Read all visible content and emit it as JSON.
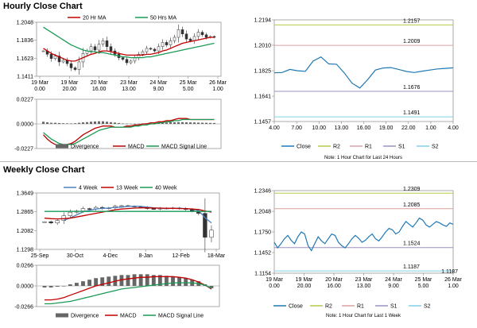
{
  "colors": {
    "up": "#ffffff",
    "down": "#333333",
    "candle_edge": "#333333",
    "ma_red": "#c00000",
    "ma_green": "#1a9a55",
    "ma_blue": "#4f81bd",
    "close_blue": "#1f78b4",
    "r2": "#b6c94a",
    "r1": "#d9a0a0",
    "s1": "#9e8fc4",
    "s2": "#7fd0e6",
    "divergence": "#666666",
    "grid": "#d9d9d9"
  },
  "sections": {
    "hourly_title": "Hourly Close Chart",
    "weekly_title": "Weekly Close Chart"
  },
  "chart_data": [
    {
      "id": "hourly_price",
      "type": "candlestick",
      "legend": [
        "20 Hr MA",
        "50 Hrs MA"
      ],
      "y_ticks": [
        "1.2048",
        "1.1836",
        "1.1623",
        "1.1411"
      ],
      "ylim": [
        1.1411,
        1.2048
      ],
      "x_ticks": [
        [
          "19 Mar",
          "0.00"
        ],
        [
          "19 Mar",
          "20.00"
        ],
        [
          "20 Mar",
          "16.00"
        ],
        [
          "23 Mar",
          "13.00"
        ],
        [
          "24 Mar",
          "9.00"
        ],
        [
          "25 Mar",
          "5.00"
        ],
        [
          "26 Mar",
          "1.00"
        ]
      ],
      "n": 44,
      "closes": [
        1.171,
        1.167,
        1.162,
        1.165,
        1.158,
        1.16,
        1.156,
        1.151,
        1.149,
        1.158,
        1.168,
        1.171,
        1.176,
        1.172,
        1.179,
        1.183,
        1.176,
        1.171,
        1.167,
        1.163,
        1.161,
        1.157,
        1.159,
        1.163,
        1.167,
        1.17,
        1.174,
        1.173,
        1.171,
        1.176,
        1.181,
        1.178,
        1.183,
        1.187,
        1.196,
        1.191,
        1.185,
        1.183,
        1.188,
        1.193,
        1.19,
        1.187,
        1.188,
        1.187
      ],
      "ma20": [
        1.174,
        1.171,
        1.168,
        1.166,
        1.164,
        1.162,
        1.16,
        1.159,
        1.159,
        1.161,
        1.163,
        1.165,
        1.167,
        1.168,
        1.17,
        1.171,
        1.171,
        1.17,
        1.169,
        1.168,
        1.167,
        1.166,
        1.166,
        1.166,
        1.166,
        1.166,
        1.167,
        1.167,
        1.168,
        1.169,
        1.171,
        1.172,
        1.174,
        1.176,
        1.178,
        1.18,
        1.181,
        1.182,
        1.183,
        1.184,
        1.185,
        1.186,
        1.187,
        1.187
      ],
      "ma50": [
        1.199,
        1.196,
        1.193,
        1.19,
        1.187,
        1.184,
        1.181,
        1.178,
        1.176,
        1.174,
        1.172,
        1.171,
        1.17,
        1.17,
        1.169,
        1.169,
        1.168,
        1.167,
        1.166,
        1.165,
        1.164,
        1.164,
        1.163,
        1.163,
        1.163,
        1.163,
        1.164,
        1.164,
        1.165,
        1.166,
        1.167,
        1.168,
        1.169,
        1.17,
        1.171,
        1.172,
        1.173,
        1.174,
        1.175,
        1.176,
        1.177,
        1.178,
        1.179,
        1.18
      ]
    },
    {
      "id": "hourly_macd",
      "type": "macd",
      "y_ticks": [
        "0.0227",
        "0.0000",
        "-0.0227"
      ],
      "ylim": [
        -0.0227,
        0.0227
      ],
      "legend": [
        "Divergence",
        "MACD",
        "MACD Signal Line"
      ],
      "divergence": [
        0.002,
        0.0015,
        0.001,
        0.001,
        0.0008,
        0.0006,
        0.0005,
        0.0004,
        0.0006,
        0.001,
        0.0014,
        0.0016,
        0.002,
        0.0022,
        0.0024,
        0.0024,
        0.002,
        0.0016,
        0.0012,
        0.0008,
        0.0004,
        0.0002,
        0.0001,
        0.0001,
        0.0002,
        0.0004,
        0.0006,
        0.0008,
        0.001,
        0.0011,
        0.0012,
        0.0013,
        0.0014,
        0.0015,
        0.0016,
        0.0016,
        0.0015,
        0.0014,
        0.0013,
        0.0012,
        0.0011,
        0.001,
        0.0009,
        0.0008
      ],
      "macd": [
        -0.01,
        -0.014,
        -0.017,
        -0.019,
        -0.02,
        -0.02,
        -0.019,
        -0.018,
        -0.016,
        -0.013,
        -0.01,
        -0.008,
        -0.006,
        -0.004,
        -0.003,
        -0.002,
        -0.002,
        -0.002,
        -0.003,
        -0.003,
        -0.003,
        -0.002,
        -0.002,
        -0.001,
        -0.001,
        0.0,
        0.0,
        0.001,
        0.001,
        0.002,
        0.002,
        0.003,
        0.003,
        0.004,
        0.005,
        0.005,
        0.005,
        0.004,
        0.004,
        0.004,
        0.004,
        0.004,
        0.004,
        0.004
      ],
      "signal": [
        -0.008,
        -0.011,
        -0.014,
        -0.016,
        -0.018,
        -0.019,
        -0.019,
        -0.019,
        -0.018,
        -0.016,
        -0.014,
        -0.012,
        -0.01,
        -0.008,
        -0.006,
        -0.005,
        -0.004,
        -0.003,
        -0.003,
        -0.003,
        -0.003,
        -0.003,
        -0.003,
        -0.002,
        -0.002,
        -0.001,
        -0.001,
        0.0,
        0.0,
        0.001,
        0.001,
        0.002,
        0.002,
        0.003,
        0.003,
        0.004,
        0.004,
        0.004,
        0.004,
        0.004,
        0.004,
        0.004,
        0.004,
        0.004
      ]
    },
    {
      "id": "hourly_close",
      "type": "line",
      "y_ticks": [
        "1.2194",
        "1.2010",
        "1.1825",
        "1.1641",
        "1.1457"
      ],
      "ylim": [
        1.1457,
        1.2194
      ],
      "x_ticks": [
        "4.00",
        "7.00",
        "10.00",
        "13.00",
        "16.00",
        "19.00",
        "22.00",
        "1.00",
        "4.00"
      ],
      "levels": [
        {
          "label": "1.2157",
          "value": 1.2157,
          "key": "r2"
        },
        {
          "label": "1.2009",
          "value": 1.2009,
          "key": "r1"
        },
        {
          "label": "1.1676",
          "value": 1.1676,
          "key": "s1"
        },
        {
          "label": "1.1491",
          "value": 1.1491,
          "key": "s2"
        }
      ],
      "values": [
        1.181,
        1.1812,
        1.1835,
        1.1825,
        1.1821,
        1.1895,
        1.1925,
        1.1875,
        1.1872,
        1.181,
        1.1735,
        1.17,
        1.176,
        1.183,
        1.1845,
        1.1848,
        1.1835,
        1.182,
        1.1812,
        1.1822,
        1.183,
        1.1838,
        1.1842,
        1.1846
      ],
      "legend": [
        "Close",
        "R2",
        "R1",
        "S1",
        "S2"
      ],
      "note": "Note: 1 Hour Chart for Last 24 Hours"
    },
    {
      "id": "weekly_price",
      "type": "candlestick",
      "legend": [
        "4 Week",
        "13 Week",
        "40 Week"
      ],
      "y_ticks": [
        "1.3649",
        "1.2865",
        "1.2082",
        "1.1298"
      ],
      "ylim": [
        1.1298,
        1.3649
      ],
      "x_ticks": [
        "25-Sep",
        "30-Oct",
        "4-Dec",
        "8-Jan",
        "12-Feb",
        "18-Mar"
      ],
      "n": 27,
      "closes": [
        1.245,
        1.24,
        1.25,
        1.27,
        1.285,
        1.29,
        1.3,
        1.298,
        1.305,
        1.3,
        1.303,
        1.31,
        1.312,
        1.31,
        1.308,
        1.305,
        1.3,
        1.298,
        1.302,
        1.3,
        1.303,
        1.3,
        1.296,
        1.29,
        1.28,
        1.18,
        1.21
      ],
      "ma4": [
        null,
        null,
        null,
        1.251,
        1.261,
        1.274,
        1.286,
        1.293,
        1.298,
        1.301,
        1.302,
        1.305,
        1.306,
        1.309,
        1.31,
        1.309,
        1.306,
        1.303,
        1.301,
        1.3,
        1.301,
        1.301,
        1.3,
        1.297,
        1.292,
        1.262,
        1.24
      ],
      "ma13": [
        1.26,
        1.258,
        1.257,
        1.258,
        1.26,
        1.265,
        1.27,
        1.275,
        1.28,
        1.285,
        1.29,
        1.295,
        1.298,
        1.3,
        1.302,
        1.303,
        1.303,
        1.302,
        1.302,
        1.301,
        1.301,
        1.3,
        1.3,
        1.298,
        1.296,
        1.29,
        1.285
      ],
      "ma40": [
        1.288,
        1.288,
        1.288,
        1.288,
        1.288,
        1.288,
        1.288,
        1.288,
        1.288,
        1.288,
        1.288,
        1.288,
        1.288,
        1.288,
        1.288,
        1.288,
        1.288,
        1.288,
        1.288,
        1.288,
        1.288,
        1.288,
        1.288,
        1.288,
        1.288,
        1.288,
        1.288
      ]
    },
    {
      "id": "weekly_macd",
      "type": "macd",
      "y_ticks": [
        "0.0266",
        "0.0000",
        "-0.0266"
      ],
      "ylim": [
        -0.0266,
        0.0266
      ],
      "legend": [
        "Divergence",
        "MACD",
        "MACD Signal Line"
      ],
      "divergence": [
        -0.002,
        -0.002,
        -0.001,
        0.0,
        0.002,
        0.004,
        0.006,
        0.008,
        0.01,
        0.011,
        0.012,
        0.013,
        0.014,
        0.014,
        0.015,
        0.015,
        0.015,
        0.014,
        0.014,
        0.013,
        0.012,
        0.011,
        0.01,
        0.008,
        0.006,
        0.002,
        -0.003
      ],
      "macd": [
        -0.018,
        -0.018,
        -0.017,
        -0.015,
        -0.012,
        -0.009,
        -0.006,
        -0.003,
        0.0,
        0.002,
        0.004,
        0.006,
        0.008,
        0.009,
        0.01,
        0.011,
        0.011,
        0.012,
        0.012,
        0.012,
        0.012,
        0.011,
        0.01,
        0.008,
        0.005,
        0.001,
        -0.004
      ],
      "signal": [
        -0.023,
        -0.023,
        -0.022,
        -0.021,
        -0.02,
        -0.018,
        -0.016,
        -0.014,
        -0.012,
        -0.01,
        -0.008,
        -0.006,
        -0.004,
        -0.003,
        -0.002,
        -0.001,
        0.0,
        0.001,
        0.002,
        0.003,
        0.004,
        0.004,
        0.004,
        0.004,
        0.003,
        0.001,
        -0.003
      ]
    },
    {
      "id": "weekly_close",
      "type": "line",
      "y_ticks": [
        "1.2346",
        "1.2048",
        "1.1750",
        "1.1452",
        "1.1154"
      ],
      "ylim": [
        1.1154,
        1.2346
      ],
      "x_ticks": [
        [
          "19 Mar",
          "0.00"
        ],
        [
          "19 Mar",
          "20.00"
        ],
        [
          "20 Mar",
          "16.00"
        ],
        [
          "23 Mar",
          "13.00"
        ],
        [
          "24 Mar",
          "9.00"
        ],
        [
          "25 Mar",
          "5.00"
        ],
        [
          "26 Mar",
          "1.00"
        ]
      ],
      "levels": [
        {
          "label": "1.2309",
          "value": 1.2309,
          "key": "r2"
        },
        {
          "label": "1.2085",
          "value": 1.2085,
          "key": "r1"
        },
        {
          "label": "1.1524",
          "value": 1.1524,
          "key": "s1"
        },
        {
          "label": "1.1187",
          "value": 1.1187,
          "key": "s2"
        }
      ],
      "extra_label": "1.1187",
      "values": [
        1.16,
        1.152,
        1.158,
        1.165,
        1.17,
        1.163,
        1.158,
        1.168,
        1.175,
        1.172,
        1.155,
        1.148,
        1.158,
        1.168,
        1.162,
        1.158,
        1.165,
        1.172,
        1.17,
        1.16,
        1.155,
        1.152,
        1.158,
        1.165,
        1.17,
        1.166,
        1.16,
        1.163,
        1.168,
        1.172,
        1.165,
        1.162,
        1.168,
        1.175,
        1.18,
        1.178,
        1.172,
        1.175,
        1.183,
        1.19,
        1.186,
        1.182,
        1.188,
        1.195,
        1.192,
        1.185,
        1.182,
        1.186,
        1.19,
        1.188,
        1.185,
        1.183,
        1.188,
        1.186
      ],
      "legend": [
        "Close",
        "R2",
        "R1",
        "S1",
        "S2"
      ],
      "note": "Note: 1 Hour Chart for Last 1 Week"
    }
  ]
}
